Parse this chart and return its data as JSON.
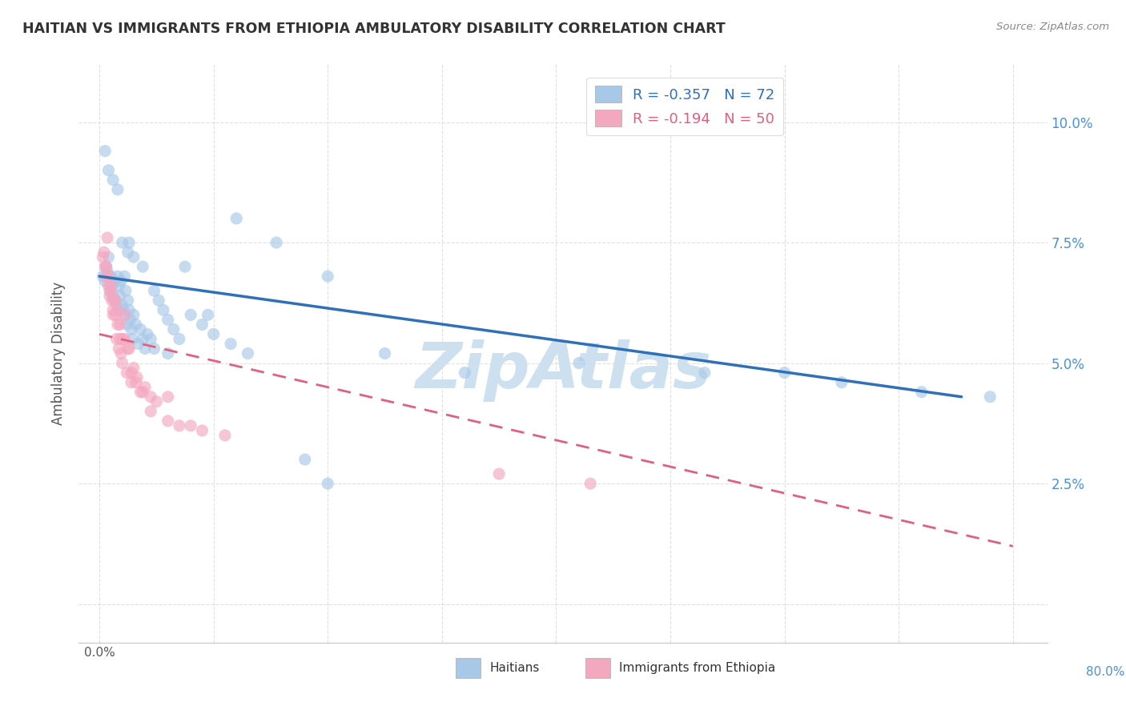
{
  "title": "HAITIAN VS IMMIGRANTS FROM ETHIOPIA AMBULATORY DISABILITY CORRELATION CHART",
  "source": "Source: ZipAtlas.com",
  "ylabel": "Ambulatory Disability",
  "ytick_values": [
    0.0,
    0.025,
    0.05,
    0.075,
    0.1
  ],
  "xtick_values": [
    0.0,
    0.1,
    0.2,
    0.3,
    0.4,
    0.5,
    0.6,
    0.7,
    0.8
  ],
  "xmin": -0.018,
  "xmax": 0.83,
  "ymin": -0.008,
  "ymax": 0.112,
  "scatter_blue_x": [
    0.003,
    0.005,
    0.006,
    0.007,
    0.008,
    0.009,
    0.01,
    0.011,
    0.012,
    0.013,
    0.014,
    0.015,
    0.016,
    0.017,
    0.018,
    0.019,
    0.02,
    0.021,
    0.022,
    0.023,
    0.024,
    0.025,
    0.026,
    0.027,
    0.028,
    0.029,
    0.03,
    0.032,
    0.034,
    0.036,
    0.038,
    0.04,
    0.042,
    0.045,
    0.048,
    0.052,
    0.056,
    0.06,
    0.065,
    0.07,
    0.08,
    0.09,
    0.1,
    0.115,
    0.13,
    0.005,
    0.008,
    0.012,
    0.016,
    0.02,
    0.025,
    0.03,
    0.038,
    0.048,
    0.06,
    0.075,
    0.095,
    0.12,
    0.155,
    0.2,
    0.25,
    0.32,
    0.42,
    0.53,
    0.6,
    0.65,
    0.72,
    0.78,
    0.18,
    0.2,
    0.022,
    0.026
  ],
  "scatter_blue_y": [
    0.068,
    0.067,
    0.07,
    0.069,
    0.072,
    0.065,
    0.068,
    0.066,
    0.064,
    0.067,
    0.063,
    0.062,
    0.068,
    0.066,
    0.064,
    0.067,
    0.062,
    0.061,
    0.06,
    0.065,
    0.058,
    0.063,
    0.061,
    0.059,
    0.057,
    0.055,
    0.06,
    0.058,
    0.054,
    0.057,
    0.055,
    0.053,
    0.056,
    0.055,
    0.053,
    0.063,
    0.061,
    0.059,
    0.057,
    0.055,
    0.06,
    0.058,
    0.056,
    0.054,
    0.052,
    0.094,
    0.09,
    0.088,
    0.086,
    0.075,
    0.073,
    0.072,
    0.07,
    0.065,
    0.052,
    0.07,
    0.06,
    0.08,
    0.075,
    0.068,
    0.052,
    0.048,
    0.05,
    0.048,
    0.048,
    0.046,
    0.044,
    0.043,
    0.03,
    0.025,
    0.068,
    0.075
  ],
  "scatter_pink_x": [
    0.003,
    0.005,
    0.006,
    0.007,
    0.008,
    0.009,
    0.01,
    0.011,
    0.012,
    0.013,
    0.014,
    0.015,
    0.016,
    0.017,
    0.018,
    0.019,
    0.02,
    0.022,
    0.024,
    0.026,
    0.028,
    0.03,
    0.033,
    0.036,
    0.04,
    0.045,
    0.05,
    0.06,
    0.07,
    0.09,
    0.004,
    0.006,
    0.008,
    0.01,
    0.012,
    0.014,
    0.016,
    0.018,
    0.02,
    0.022,
    0.025,
    0.028,
    0.032,
    0.038,
    0.045,
    0.06,
    0.08,
    0.11,
    0.35,
    0.43
  ],
  "scatter_pink_y": [
    0.072,
    0.07,
    0.068,
    0.076,
    0.066,
    0.064,
    0.065,
    0.063,
    0.061,
    0.063,
    0.06,
    0.055,
    0.058,
    0.053,
    0.055,
    0.052,
    0.05,
    0.055,
    0.048,
    0.053,
    0.046,
    0.049,
    0.047,
    0.044,
    0.045,
    0.043,
    0.042,
    0.038,
    0.037,
    0.036,
    0.073,
    0.07,
    0.068,
    0.066,
    0.06,
    0.063,
    0.061,
    0.058,
    0.055,
    0.06,
    0.053,
    0.048,
    0.046,
    0.044,
    0.04,
    0.043,
    0.037,
    0.035,
    0.027,
    0.025
  ],
  "blue_line_x": [
    0.0,
    0.755
  ],
  "blue_line_y": [
    0.068,
    0.043
  ],
  "pink_line_x": [
    0.0,
    0.8
  ],
  "pink_line_y": [
    0.056,
    0.012
  ],
  "blue_dot_color": "#a8c8e8",
  "pink_dot_color": "#f4a8c0",
  "blue_line_color": "#3070b8",
  "pink_line_color": "#e06080",
  "background_color": "#ffffff",
  "grid_color": "#d8d8d8",
  "title_color": "#333333",
  "axis_label_color": "#555555",
  "right_axis_color": "#4a90d9",
  "watermark_color": "#cce0f0",
  "dot_size": 120,
  "dot_alpha": 0.65,
  "legend_blue_label": "R = -0.357   N = 72",
  "legend_pink_label": "R = -0.194   N = 50",
  "bottom_legend_blue": "Haitians",
  "bottom_legend_pink": "Immigrants from Ethiopia"
}
